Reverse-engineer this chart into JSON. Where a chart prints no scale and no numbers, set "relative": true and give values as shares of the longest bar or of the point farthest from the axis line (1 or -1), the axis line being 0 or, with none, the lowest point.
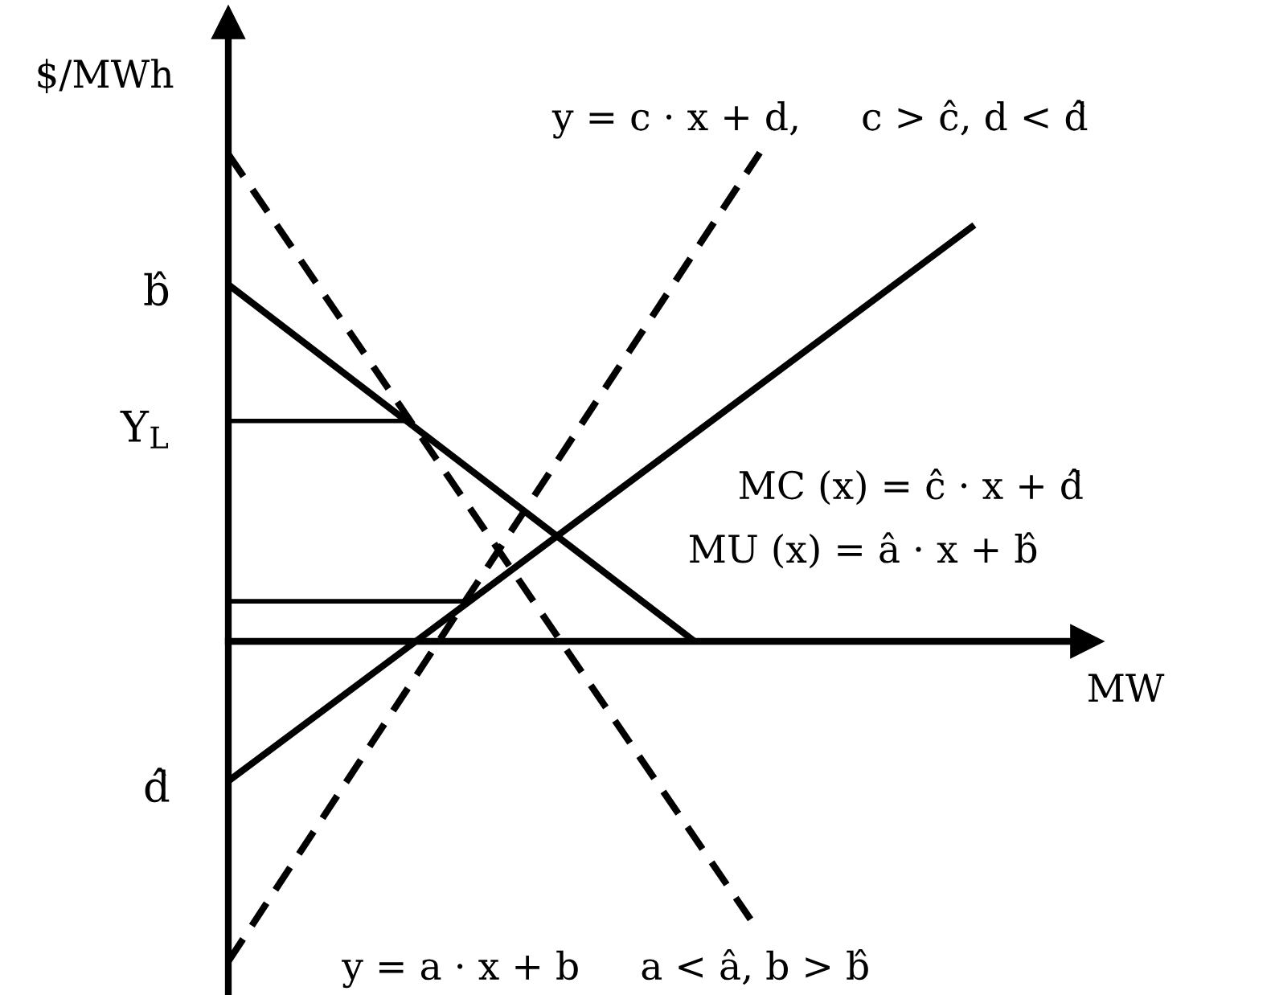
{
  "chart_data": {
    "type": "line",
    "relative": true,
    "xlabel": "MW",
    "ylabel": "$/MWh",
    "legend": false,
    "categories": [
      null,
      null,
      null,
      null,
      null,
      null,
      null,
      null,
      null,
      null,
      null,
      null,
      null,
      null,
      null,
      null,
      null,
      null,
      null,
      null,
      null,
      null,
      null,
      null,
      null,
      null,
      null,
      null,
      null,
      null,
      null,
      null,
      null,
      null,
      null,
      null,
      null,
      null,
      null,
      null,
      null,
      null,
      null,
      null,
      null,
      null,
      null,
      null,
      null,
      null,
      null,
      null,
      null,
      null,
      null,
      null,
      null,
      null,
      null,
      null,
      null,
      null,
      null,
      null,
      null,
      null,
      null,
      null,
      null,
      null,
      null,
      null,
      null,
      null,
      null,
      null,
      null,
      null,
      null,
      null,
      null
    ],
    "series": [
      {
        "name": "MU (x) = â · x + b̂",
        "color": "#000000",
        "line_style": "solid",
        "values": [
          0.73,
          null,
          null,
          null,
          null,
          null,
          null,
          null,
          null,
          null,
          null,
          null,
          null,
          null,
          null,
          null,
          null,
          null,
          null,
          null,
          null,
          null,
          null,
          null,
          null,
          null,
          null,
          null,
          null,
          null,
          null,
          null,
          null,
          null,
          null,
          null,
          null,
          null,
          null,
          null,
          null,
          null,
          null,
          null,
          null,
          null,
          null,
          null,
          null,
          null,
          0,
          null,
          null,
          null,
          null,
          null,
          null,
          null,
          null,
          null,
          null,
          null,
          null,
          null,
          null,
          null,
          null,
          null,
          null,
          null,
          null,
          null,
          null,
          null,
          null,
          null,
          null,
          null,
          null,
          null,
          null
        ]
      },
      {
        "name": "MC (x) = ĉ · x + d̂",
        "color": "#000000",
        "line_style": "solid",
        "values": [
          -0.286,
          null,
          null,
          null,
          null,
          null,
          null,
          null,
          null,
          null,
          null,
          null,
          null,
          null,
          null,
          null,
          null,
          null,
          null,
          null,
          null,
          null,
          null,
          null,
          null,
          null,
          null,
          null,
          null,
          null,
          null,
          null,
          null,
          null,
          null,
          null,
          null,
          null,
          null,
          null,
          null,
          null,
          null,
          null,
          null,
          null,
          null,
          null,
          null,
          null,
          null,
          null,
          null,
          null,
          null,
          null,
          null,
          null,
          null,
          null,
          null,
          null,
          null,
          null,
          null,
          null,
          null,
          null,
          null,
          null,
          null,
          null,
          null,
          null,
          null,
          null,
          null,
          null,
          null,
          null,
          0.852
        ]
      },
      {
        "name": "y = a · x + b     a < â, b > b̂",
        "color": "#000000",
        "line_style": "dashed",
        "values": [
          0.997,
          null,
          null,
          null,
          null,
          null,
          null,
          null,
          null,
          null,
          null,
          null,
          null,
          null,
          null,
          null,
          null,
          null,
          null,
          null,
          null,
          null,
          null,
          null,
          null,
          null,
          null,
          null,
          null,
          null,
          null,
          null,
          null,
          null,
          null,
          null,
          null,
          null,
          null,
          null,
          null,
          null,
          null,
          null,
          null,
          null,
          null,
          null,
          null,
          null,
          null,
          null,
          null,
          null,
          null,
          null,
          -0.569,
          null,
          null,
          null,
          null,
          null,
          null,
          null,
          null,
          null,
          null,
          null,
          null,
          null,
          null,
          null,
          null,
          null,
          null,
          null,
          null,
          null,
          null,
          null,
          null
        ]
      },
      {
        "name": "y = c · x + d,     c > ĉ, d < d̂",
        "color": "#000000",
        "line_style": "dashed",
        "values": [
          -0.655,
          null,
          null,
          null,
          null,
          null,
          null,
          null,
          null,
          null,
          null,
          null,
          null,
          null,
          null,
          null,
          null,
          null,
          null,
          null,
          null,
          null,
          null,
          null,
          null,
          null,
          null,
          null,
          null,
          null,
          null,
          null,
          null,
          null,
          null,
          null,
          null,
          null,
          null,
          null,
          null,
          null,
          null,
          null,
          null,
          null,
          null,
          null,
          null,
          null,
          null,
          null,
          null,
          null,
          null,
          null,
          null,
          1,
          null,
          null,
          null,
          null,
          null,
          null,
          null,
          null,
          null,
          null,
          null,
          null,
          null,
          null,
          null,
          null,
          null,
          null,
          null,
          null,
          null,
          null,
          null
        ]
      },
      {
        "color": "#000000",
        "line_style": "solid",
        "values": [
          0.451,
          null,
          null,
          null,
          null,
          null,
          null,
          null,
          null,
          null,
          null,
          null,
          null,
          null,
          null,
          null,
          null,
          null,
          null,
          0.451,
          null,
          null,
          null,
          null,
          null,
          null,
          null,
          null,
          null,
          null,
          null,
          null,
          null,
          null,
          null,
          null,
          null,
          null,
          null,
          null,
          null,
          null,
          null,
          null,
          null,
          null,
          null,
          null,
          null,
          null,
          null,
          null,
          null,
          null,
          null,
          null,
          null,
          null,
          null,
          null,
          null,
          null,
          null,
          null,
          null,
          null,
          null,
          null,
          null,
          null,
          null,
          null,
          null,
          null,
          null,
          null,
          null,
          null,
          null,
          null,
          null
        ]
      },
      {
        "color": "#000000",
        "line_style": "solid",
        "values": [
          0.082,
          null,
          null,
          null,
          null,
          null,
          null,
          null,
          null,
          null,
          null,
          null,
          null,
          null,
          null,
          null,
          null,
          null,
          null,
          null,
          null,
          null,
          null,
          null,
          null,
          null,
          0.082,
          null,
          null,
          null,
          null,
          null,
          null,
          null,
          null,
          null,
          null,
          null,
          null,
          null,
          null,
          null,
          null,
          null,
          null,
          null,
          null,
          null,
          null,
          null,
          null,
          null,
          null,
          null,
          null,
          null,
          null,
          null,
          null,
          null,
          null,
          null,
          null,
          null,
          null,
          null,
          null,
          null,
          null,
          null,
          null,
          null,
          null,
          null,
          null,
          null,
          null,
          null,
          null,
          null,
          null
        ]
      }
    ],
    "annotations": [
      "b̂",
      "Y$_{L}$",
      "d̂"
    ]
  }
}
